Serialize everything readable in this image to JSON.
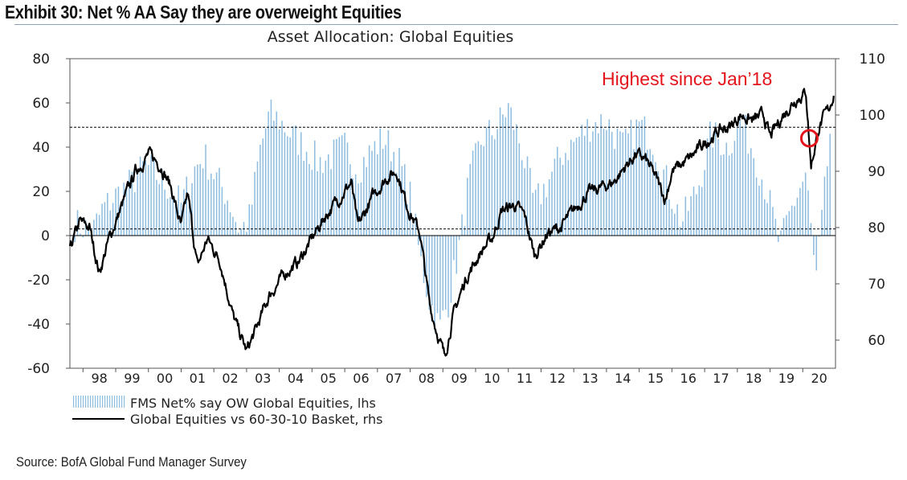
{
  "header": {
    "exhibit_title": "Exhibit 30: Net % AA Say they are overweight Equities"
  },
  "footer": {
    "source": "Source: BofA Global Fund Manager Survey"
  },
  "chart_data": {
    "type": "bar+line",
    "title": "Asset Allocation: Global Equities",
    "annotation": "Highest since Jan’18",
    "x_tick_labels": [
      "98",
      "99",
      "00",
      "01",
      "02",
      "03",
      "04",
      "05",
      "06",
      "07",
      "08",
      "09",
      "10",
      "11",
      "12",
      "13",
      "14",
      "15",
      "16",
      "17",
      "18",
      "19",
      "20"
    ],
    "x_range": [
      1997.6,
      2021.0
    ],
    "left_axis": {
      "min": -60,
      "max": 80,
      "ticks": [
        80,
        60,
        40,
        20,
        0,
        -20,
        -40,
        -60
      ]
    },
    "right_axis": {
      "min": 55,
      "max": 110,
      "ticks": [
        110,
        100,
        90,
        80,
        70,
        60
      ]
    },
    "reference_lines_left": [
      49,
      3
    ],
    "zero_line": 0,
    "colors": {
      "bars": "#8fbde0",
      "line": "#000000",
      "annotation": "#e3141b",
      "marker": "#e3141b"
    },
    "series": [
      {
        "name": "FMS Net% say OW Global Equities, lhs",
        "axis": "left",
        "style": "bars",
        "keypoints": [
          [
            1997.8,
            5
          ],
          [
            1998.3,
            2
          ],
          [
            1998.6,
            12
          ],
          [
            1999.0,
            18
          ],
          [
            1999.5,
            24
          ],
          [
            1999.9,
            32
          ],
          [
            2000.2,
            28
          ],
          [
            2000.6,
            22
          ],
          [
            2001.0,
            14
          ],
          [
            2001.4,
            30
          ],
          [
            2001.7,
            36
          ],
          [
            2002.0,
            28
          ],
          [
            2002.4,
            18
          ],
          [
            2002.8,
            2
          ],
          [
            2003.1,
            8
          ],
          [
            2003.4,
            38
          ],
          [
            2003.7,
            55
          ],
          [
            2004.0,
            52
          ],
          [
            2004.4,
            45
          ],
          [
            2004.8,
            40
          ],
          [
            2005.2,
            33
          ],
          [
            2005.6,
            36
          ],
          [
            2006.0,
            40
          ],
          [
            2006.4,
            30
          ],
          [
            2006.8,
            38
          ],
          [
            2007.2,
            44
          ],
          [
            2007.6,
            36
          ],
          [
            2008.0,
            18
          ],
          [
            2008.3,
            -10
          ],
          [
            2008.6,
            -30
          ],
          [
            2008.9,
            -42
          ],
          [
            2009.2,
            -28
          ],
          [
            2009.5,
            -5
          ],
          [
            2009.8,
            25
          ],
          [
            2010.2,
            44
          ],
          [
            2010.6,
            48
          ],
          [
            2011.0,
            58
          ],
          [
            2011.4,
            40
          ],
          [
            2011.8,
            14
          ],
          [
            2012.2,
            24
          ],
          [
            2012.6,
            36
          ],
          [
            2013.0,
            42
          ],
          [
            2013.5,
            50
          ],
          [
            2014.0,
            52
          ],
          [
            2014.5,
            40
          ],
          [
            2015.0,
            50
          ],
          [
            2015.4,
            44
          ],
          [
            2015.8,
            26
          ],
          [
            2016.3,
            6
          ],
          [
            2016.8,
            22
          ],
          [
            2017.2,
            46
          ],
          [
            2017.7,
            40
          ],
          [
            2018.1,
            52
          ],
          [
            2018.5,
            38
          ],
          [
            2018.9,
            20
          ],
          [
            2019.3,
            -5
          ],
          [
            2019.7,
            14
          ],
          [
            2020.1,
            28
          ],
          [
            2020.4,
            -22
          ],
          [
            2020.7,
            24
          ],
          [
            2020.85,
            49
          ]
        ]
      },
      {
        "name": "Global Equities vs 60-30-10 Basket, rhs",
        "axis": "right",
        "style": "line",
        "keypoints": [
          [
            1997.6,
            76
          ],
          [
            1997.9,
            81
          ],
          [
            1998.2,
            80
          ],
          [
            1998.5,
            72
          ],
          [
            1998.8,
            78
          ],
          [
            1999.2,
            84
          ],
          [
            1999.6,
            90
          ],
          [
            2000.0,
            93
          ],
          [
            2000.4,
            91
          ],
          [
            2000.7,
            87
          ],
          [
            2001.0,
            80
          ],
          [
            2001.2,
            86
          ],
          [
            2001.5,
            73
          ],
          [
            2001.8,
            78
          ],
          [
            2002.2,
            74
          ],
          [
            2002.6,
            64
          ],
          [
            2003.0,
            58
          ],
          [
            2003.3,
            62
          ],
          [
            2003.7,
            68
          ],
          [
            2004.2,
            72
          ],
          [
            2004.6,
            74
          ],
          [
            2005.0,
            78
          ],
          [
            2005.4,
            82
          ],
          [
            2005.8,
            85
          ],
          [
            2006.2,
            88
          ],
          [
            2006.4,
            80
          ],
          [
            2006.9,
            86
          ],
          [
            2007.3,
            89
          ],
          [
            2007.6,
            90
          ],
          [
            2007.9,
            84
          ],
          [
            2008.3,
            79
          ],
          [
            2008.6,
            66
          ],
          [
            2008.9,
            60
          ],
          [
            2009.05,
            57
          ],
          [
            2009.3,
            64
          ],
          [
            2009.7,
            71
          ],
          [
            2010.2,
            76
          ],
          [
            2010.5,
            78
          ],
          [
            2010.8,
            83
          ],
          [
            2011.2,
            84
          ],
          [
            2011.5,
            82
          ],
          [
            2011.8,
            75
          ],
          [
            2012.2,
            79
          ],
          [
            2012.6,
            80
          ],
          [
            2013.0,
            83
          ],
          [
            2013.4,
            86
          ],
          [
            2013.8,
            87
          ],
          [
            2014.2,
            88
          ],
          [
            2014.6,
            91
          ],
          [
            2014.9,
            93
          ],
          [
            2015.2,
            92
          ],
          [
            2015.5,
            89
          ],
          [
            2015.8,
            85
          ],
          [
            2016.0,
            90
          ],
          [
            2016.5,
            92
          ],
          [
            2017.0,
            95
          ],
          [
            2017.4,
            97
          ],
          [
            2017.8,
            98
          ],
          [
            2018.1,
            100
          ],
          [
            2018.5,
            99
          ],
          [
            2018.8,
            100
          ],
          [
            2019.0,
            96
          ],
          [
            2019.4,
            100
          ],
          [
            2019.8,
            103
          ],
          [
            2020.1,
            104
          ],
          [
            2020.25,
            91
          ],
          [
            2020.5,
            98
          ],
          [
            2020.8,
            101
          ],
          [
            2020.95,
            104
          ]
        ]
      }
    ],
    "legend": {
      "position": "bottom-left",
      "entries": [
        "FMS Net% say OW Global Equities, lhs",
        "Global Equities vs 60-30-10 Basket, rhs"
      ]
    },
    "marker": {
      "shape": "circle",
      "x": 2020.2,
      "y_left": 44,
      "color": "#e3141b"
    }
  }
}
